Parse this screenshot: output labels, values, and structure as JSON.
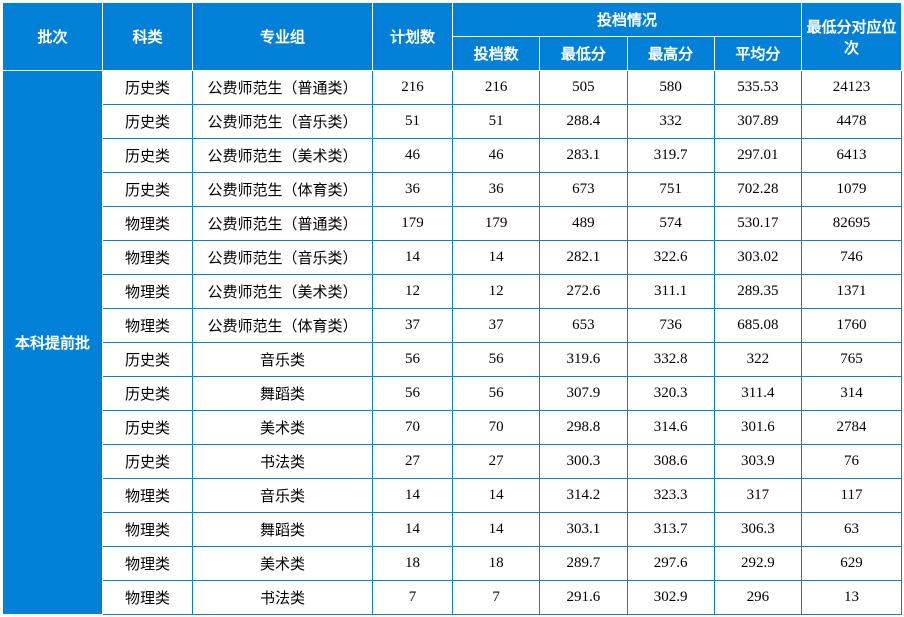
{
  "header": {
    "batch": "批次",
    "category": "科类",
    "major_group": "专业组",
    "plan_count": "计划数",
    "admission": "投档情况",
    "admission_count": "投档数",
    "min_score": "最低分",
    "max_score": "最高分",
    "avg_score": "平均分",
    "min_rank": "最低分对应位次"
  },
  "batch_label": "本科提前批",
  "rows": [
    {
      "category": "历史类",
      "major": "公费师范生（普通类）",
      "plan": "216",
      "count": "216",
      "min": "505",
      "max": "580",
      "avg": "535.53",
      "rank": "24123"
    },
    {
      "category": "历史类",
      "major": "公费师范生（音乐类）",
      "plan": "51",
      "count": "51",
      "min": "288.4",
      "max": "332",
      "avg": "307.89",
      "rank": "4478"
    },
    {
      "category": "历史类",
      "major": "公费师范生（美术类）",
      "plan": "46",
      "count": "46",
      "min": "283.1",
      "max": "319.7",
      "avg": "297.01",
      "rank": "6413"
    },
    {
      "category": "历史类",
      "major": "公费师范生（体育类）",
      "plan": "36",
      "count": "36",
      "min": "673",
      "max": "751",
      "avg": "702.28",
      "rank": "1079"
    },
    {
      "category": "物理类",
      "major": "公费师范生（普通类）",
      "plan": "179",
      "count": "179",
      "min": "489",
      "max": "574",
      "avg": "530.17",
      "rank": "82695"
    },
    {
      "category": "物理类",
      "major": "公费师范生（音乐类）",
      "plan": "14",
      "count": "14",
      "min": "282.1",
      "max": "322.6",
      "avg": "303.02",
      "rank": "746"
    },
    {
      "category": "物理类",
      "major": "公费师范生（美术类）",
      "plan": "12",
      "count": "12",
      "min": "272.6",
      "max": "311.1",
      "avg": "289.35",
      "rank": "1371"
    },
    {
      "category": "物理类",
      "major": "公费师范生（体育类）",
      "plan": "37",
      "count": "37",
      "min": "653",
      "max": "736",
      "avg": "685.08",
      "rank": "1760"
    },
    {
      "category": "历史类",
      "major": "音乐类",
      "plan": "56",
      "count": "56",
      "min": "319.6",
      "max": "332.8",
      "avg": "322",
      "rank": "765"
    },
    {
      "category": "历史类",
      "major": "舞蹈类",
      "plan": "56",
      "count": "56",
      "min": "307.9",
      "max": "320.3",
      "avg": "311.4",
      "rank": "314"
    },
    {
      "category": "历史类",
      "major": "美术类",
      "plan": "70",
      "count": "70",
      "min": "298.8",
      "max": "314.6",
      "avg": "301.6",
      "rank": "2784"
    },
    {
      "category": "历史类",
      "major": "书法类",
      "plan": "27",
      "count": "27",
      "min": "300.3",
      "max": "308.6",
      "avg": "303.9",
      "rank": "76"
    },
    {
      "category": "物理类",
      "major": "音乐类",
      "plan": "14",
      "count": "14",
      "min": "314.2",
      "max": "323.3",
      "avg": "317",
      "rank": "117"
    },
    {
      "category": "物理类",
      "major": "舞蹈类",
      "plan": "14",
      "count": "14",
      "min": "303.1",
      "max": "313.7",
      "avg": "306.3",
      "rank": "63"
    },
    {
      "category": "物理类",
      "major": "美术类",
      "plan": "18",
      "count": "18",
      "min": "289.7",
      "max": "297.6",
      "avg": "292.9",
      "rank": "629"
    },
    {
      "category": "物理类",
      "major": "书法类",
      "plan": "7",
      "count": "7",
      "min": "291.6",
      "max": "302.9",
      "avg": "296",
      "rank": "13"
    }
  ],
  "colors": {
    "header_bg": "#0080d7",
    "header_text": "#ffffff",
    "cell_bg": "#ffffff",
    "cell_text": "#000000",
    "border": "#0080d7"
  }
}
